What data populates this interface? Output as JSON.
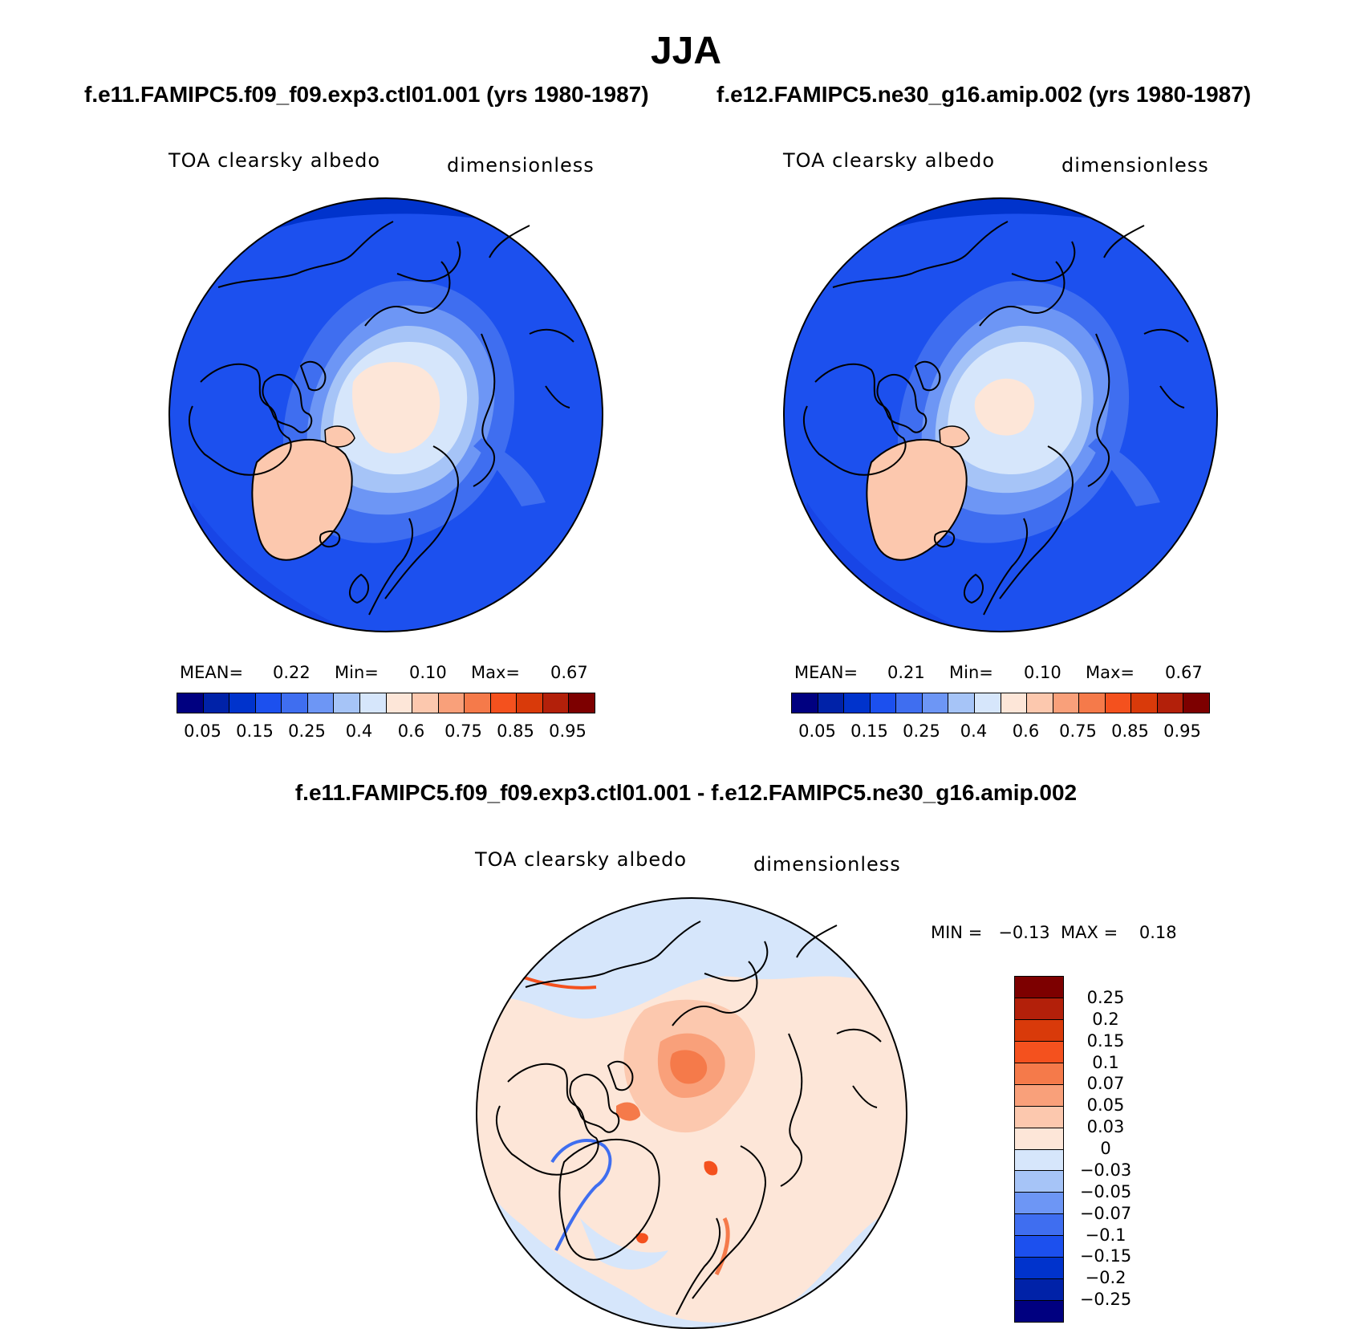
{
  "title": "JJA",
  "panels": [
    {
      "case": "f.e11.FAMIPC5.f09_f09.exp3.ctl01.001 (yrs 1980-1987)",
      "variable": "TOA clearsky albedo",
      "units": "dimensionless",
      "stats": {
        "mean_label": "MEAN=",
        "mean": "0.22",
        "min_label": "Min=",
        "min": "0.10",
        "max_label": "Max=",
        "max": "0.67"
      }
    },
    {
      "case": "f.e12.FAMIPC5.ne30_g16.amip.002 (yrs 1980-1987)",
      "variable": "TOA clearsky albedo",
      "units": "dimensionless",
      "stats": {
        "mean_label": "MEAN=",
        "mean": "0.21",
        "min_label": "Min=",
        "min": "0.10",
        "max_label": "Max=",
        "max": "0.67"
      }
    }
  ],
  "diff": {
    "case": "f.e11.FAMIPC5.f09_f09.exp3.ctl01.001 - f.e12.FAMIPC5.ne30_g16.amip.002",
    "variable": "TOA clearsky albedo",
    "units": "dimensionless",
    "minmax": "MIN =   −0.13  MAX =    0.18"
  },
  "colorbar": {
    "colors": [
      "#000080",
      "#0022a8",
      "#0033cc",
      "#1c50ee",
      "#3f6ef0",
      "#6d96f5",
      "#a6c4f7",
      "#d6e6fb",
      "#fde6d8",
      "#fcc8ae",
      "#f9a07a",
      "#f57a4a",
      "#f4511e",
      "#d93a0a",
      "#b3200a",
      "#7d0000"
    ],
    "ticks": [
      "0.05",
      "0.15",
      "0.25",
      "0.4",
      "0.6",
      "0.75",
      "0.85",
      "0.95"
    ]
  },
  "diff_colorbar": {
    "colors": [
      "#7d0000",
      "#b3200a",
      "#d93a0a",
      "#f4511e",
      "#f57a4a",
      "#f9a07a",
      "#fcc8ae",
      "#fde6d8",
      "#d6e6fb",
      "#a6c4f7",
      "#6d96f5",
      "#3f6ef0",
      "#1c50ee",
      "#0033cc",
      "#0022a8",
      "#000080"
    ],
    "ticks": [
      "0.25",
      "0.2",
      "0.15",
      "0.1",
      "0.07",
      "0.05",
      "0.03",
      "0",
      "−0.03",
      "−0.05",
      "−0.07",
      "−0.1",
      "−0.15",
      "−0.2",
      "−0.25"
    ]
  }
}
